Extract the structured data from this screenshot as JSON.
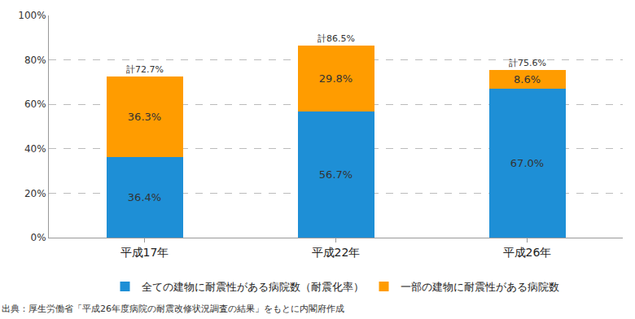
{
  "chart_data": {
    "type": "bar",
    "stacked": true,
    "data_labels": true,
    "grid": true,
    "legend": "bottom",
    "categories": [
      "平成17年",
      "平成22年",
      "平成26年"
    ],
    "series": [
      {
        "name": "全ての建物に耐震性がある病院数（耐震化率）",
        "color": "#1e8fd6",
        "values": [
          36.4,
          56.7,
          67.0
        ],
        "value_labels": [
          "36.4%",
          "56.7%",
          "67.0%"
        ]
      },
      {
        "name": "一部の建物に耐震性がある病院数",
        "color": "#ff9c00",
        "values": [
          36.3,
          29.8,
          8.6
        ],
        "value_labels": [
          "36.3%",
          "29.8%",
          "8.6%"
        ]
      }
    ],
    "totals": {
      "values": [
        72.7,
        86.5,
        75.6
      ],
      "value_labels": [
        "計72.7%",
        "計86.5%",
        "計75.6%"
      ]
    },
    "ylim": [
      0,
      100
    ],
    "yticks": [
      {
        "value": 0,
        "label": "0%"
      },
      {
        "value": 20,
        "label": "20%"
      },
      {
        "value": 40,
        "label": "40%"
      },
      {
        "value": 60,
        "label": "60%"
      },
      {
        "value": 80,
        "label": "80%"
      },
      {
        "value": 100,
        "label": "100%"
      }
    ],
    "source": "出典：厚生労働省「平成26年度病院の耐震改修状況調査の結果」をもとに内閣府作成"
  }
}
